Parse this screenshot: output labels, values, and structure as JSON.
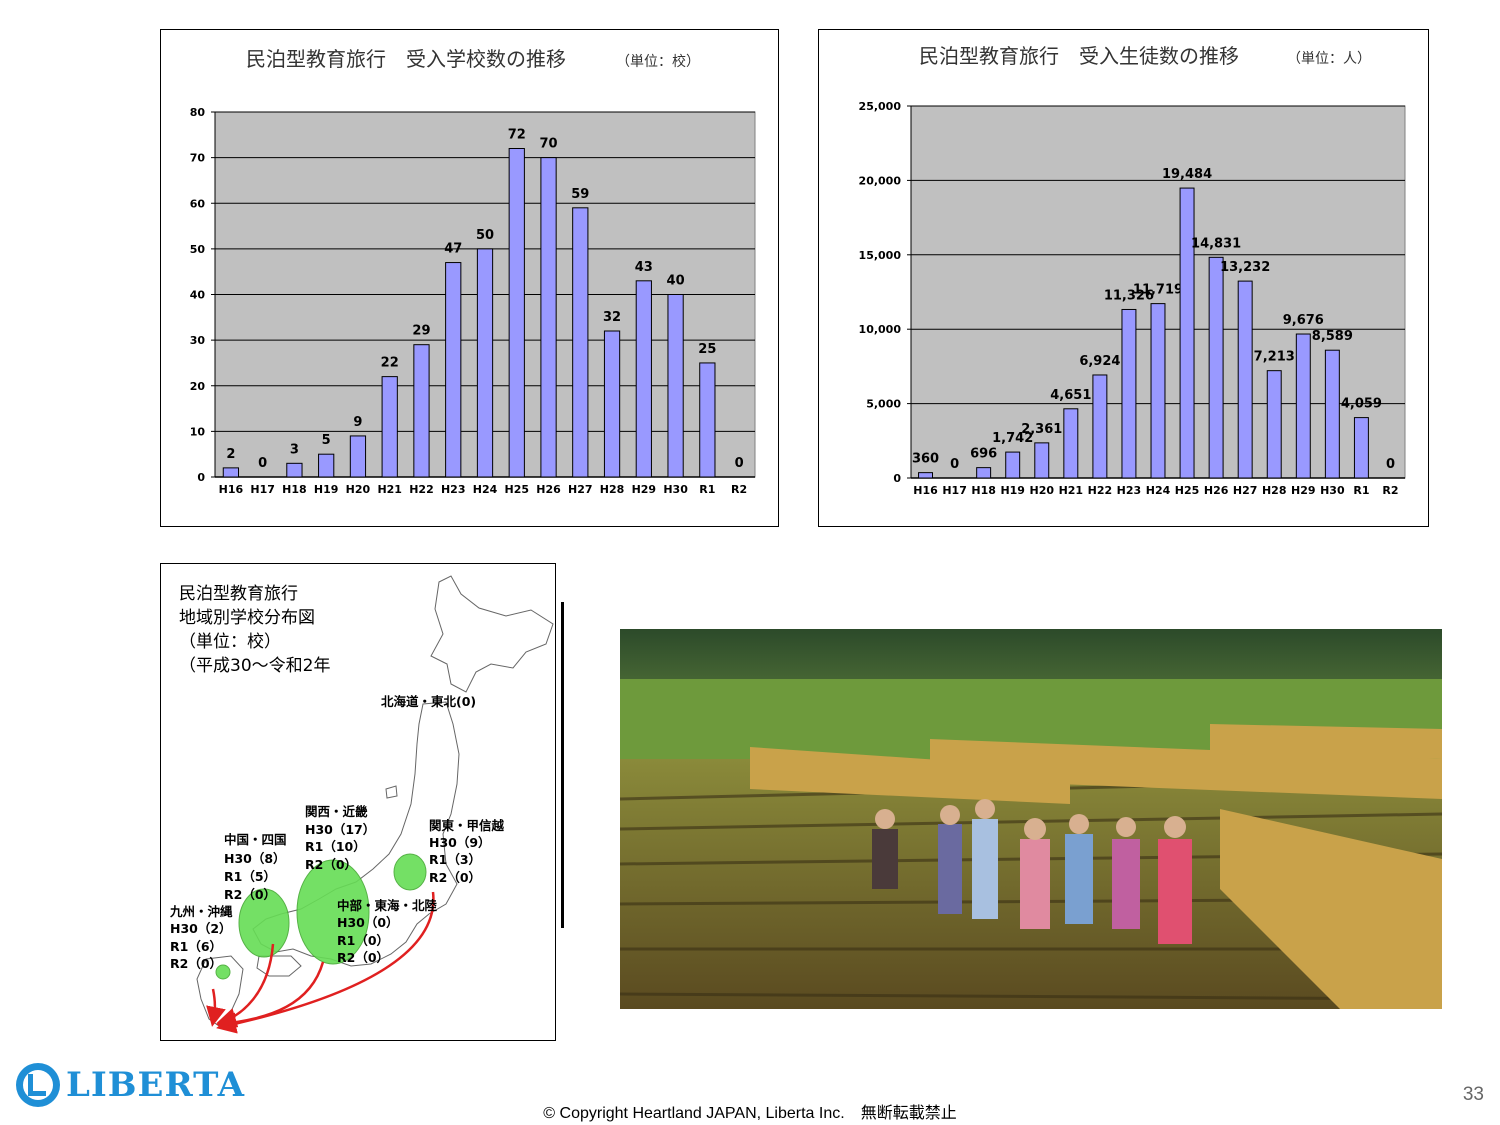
{
  "chart_data": [
    {
      "type": "bar",
      "title": "民泊型教育旅行　受入学校数の推移",
      "unit": "（単位：校）",
      "categories": [
        "H16",
        "H17",
        "H18",
        "H19",
        "H20",
        "H21",
        "H22",
        "H23",
        "H24",
        "H25",
        "H26",
        "H27",
        "H28",
        "H29",
        "H30",
        "R1",
        "R2"
      ],
      "values": [
        2,
        0,
        3,
        5,
        9,
        22,
        29,
        47,
        50,
        72,
        70,
        59,
        32,
        43,
        40,
        25,
        0
      ],
      "value_labels": [
        "2",
        "0",
        "3",
        "5",
        "9",
        "22",
        "29",
        "47",
        "50",
        "72",
        "70",
        "59",
        "32",
        "43",
        "40",
        "25",
        "0"
      ],
      "ylim": [
        0,
        80
      ],
      "yticks": [
        0,
        10,
        20,
        30,
        40,
        50,
        60,
        70,
        80
      ],
      "ytick_labels": [
        "0",
        "10",
        "20",
        "30",
        "40",
        "50",
        "60",
        "70",
        "80"
      ],
      "grid": true,
      "colors": {
        "bar": "#9999ff",
        "plot_bg": "#c0c0c0",
        "bar_edge": "#000000"
      }
    },
    {
      "type": "bar",
      "title": "民泊型教育旅行　受入生徒数の推移",
      "unit": "（単位：人）",
      "categories": [
        "H16",
        "H17",
        "H18",
        "H19",
        "H20",
        "H21",
        "H22",
        "H23",
        "H24",
        "H25",
        "H26",
        "H27",
        "H28",
        "H29",
        "H30",
        "R1",
        "R2"
      ],
      "values": [
        360,
        0,
        696,
        1742,
        2361,
        4651,
        6924,
        11326,
        11719,
        19484,
        14831,
        13232,
        7213,
        9676,
        8589,
        4059,
        0
      ],
      "value_labels": [
        "360",
        "0",
        "696",
        "1,742",
        "2,361",
        "4,651",
        "6,924",
        "11,326",
        "11,719",
        "19,484",
        "14,831",
        "13,232",
        "7,213",
        "9,676",
        "8,589",
        "4,059",
        "0"
      ],
      "ylim": [
        0,
        25000
      ],
      "yticks": [
        0,
        5000,
        10000,
        15000,
        20000,
        25000
      ],
      "ytick_labels": [
        "0",
        "5,000",
        "10,000",
        "15,000",
        "20,000",
        "25,000"
      ],
      "grid": true,
      "colors": {
        "bar": "#9999ff",
        "plot_bg": "#c0c0c0",
        "bar_edge": "#000000"
      }
    }
  ],
  "map": {
    "title_lines": [
      "民泊型教育旅行",
      "地域別学校分布図",
      "（単位：校）",
      "（平成30～令和2年"
    ],
    "regions": [
      {
        "lines": [
          "北海道・東北(0)"
        ]
      },
      {
        "lines": [
          "関西・近畿",
          "H30（17）",
          "R1（10）",
          "R2（0）"
        ]
      },
      {
        "lines": [
          "中国・四国",
          "H30（8）",
          "R1（5）",
          "R2（0）"
        ]
      },
      {
        "lines": [
          "関東・甲信越",
          "H30（9）",
          "R1（3）",
          "R2（0）"
        ]
      },
      {
        "lines": [
          "九州・沖縄",
          "H30（2）",
          "R1（6）",
          "R2（0）"
        ]
      },
      {
        "lines": [
          "中部・東海・北陸",
          "H30（0）",
          "R1（0）",
          "R2（0）"
        ]
      }
    ],
    "colors": {
      "bubble": "#66dd55",
      "arrow": "#e02020"
    }
  },
  "photo": {
    "icon": "rice-harvest-photo"
  },
  "footer": {
    "logo_text": "LIBERTA",
    "copyright": "© Copyright Heartland JAPAN, Liberta Inc.　無断転載禁止",
    "page_number": "33"
  }
}
